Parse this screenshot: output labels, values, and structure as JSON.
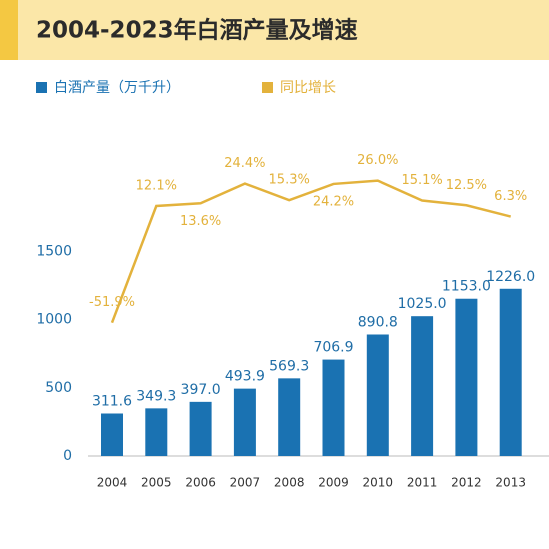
{
  "chart_data": {
    "type": "bar_line",
    "title": "2004-2023年白酒产量及增速",
    "categories": [
      "2004",
      "2005",
      "2006",
      "2007",
      "2008",
      "2009",
      "2010",
      "2011",
      "2012",
      "2013"
    ],
    "series": [
      {
        "name": "白酒产量（万千升）",
        "type": "bar",
        "color": "#1a72b2",
        "values": [
          311.6,
          349.3,
          397.0,
          493.9,
          569.3,
          706.9,
          890.8,
          1025.0,
          1153.0,
          1226.0
        ],
        "value_labels": [
          "311.6",
          "349.3",
          "397.0",
          "493.9",
          "569.3",
          "706.9",
          "890.8",
          "1025.0",
          "1153.0",
          "1226.0"
        ]
      },
      {
        "name": "同比增长",
        "type": "line",
        "axis": "y2",
        "color": "#e3b23c",
        "values": [
          -51.9,
          12.1,
          13.6,
          24.4,
          15.3,
          24.2,
          26.0,
          15.1,
          12.5,
          6.3
        ],
        "value_labels": [
          "-51.9%",
          "12.1%",
          "13.6%",
          "24.4%",
          "15.3%",
          "24.2%",
          "26.0%",
          "15.1%",
          "12.5%",
          "6.3%"
        ]
      }
    ],
    "ylim": [
      0,
      2500
    ],
    "yticks": [
      0,
      500,
      1000,
      1500
    ],
    "y2lim": [
      -125,
      62
    ]
  }
}
